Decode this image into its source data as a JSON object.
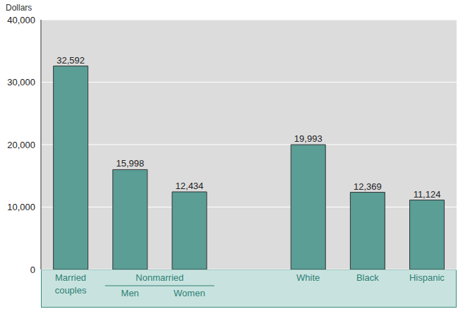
{
  "chart_data": {
    "type": "bar",
    "y_label": "Dollars",
    "categories": [
      "Married couples",
      "Men",
      "Women",
      null,
      "White",
      "Black",
      "Hispanic"
    ],
    "values": [
      32592,
      15998,
      12434,
      null,
      19993,
      12369,
      11124
    ],
    "value_labels": [
      "32,592",
      "15,998",
      "12,434",
      null,
      "19,993",
      "12,369",
      "11,124"
    ],
    "groups": [
      {
        "label": "Nonmarried",
        "categories": [
          "Men",
          "Women"
        ]
      }
    ],
    "color": "#5a9e96",
    "ylim": [
      0,
      40000
    ],
    "yticks": [
      0,
      {
        "value": 10000,
        "label": "10,000"
      },
      {
        "value": 20000,
        "label": "20,000"
      },
      {
        "value": 30000,
        "label": "30,000"
      },
      {
        "value": 40000,
        "label": "40,000"
      }
    ],
    "grid": true,
    "data_labels": true
  }
}
